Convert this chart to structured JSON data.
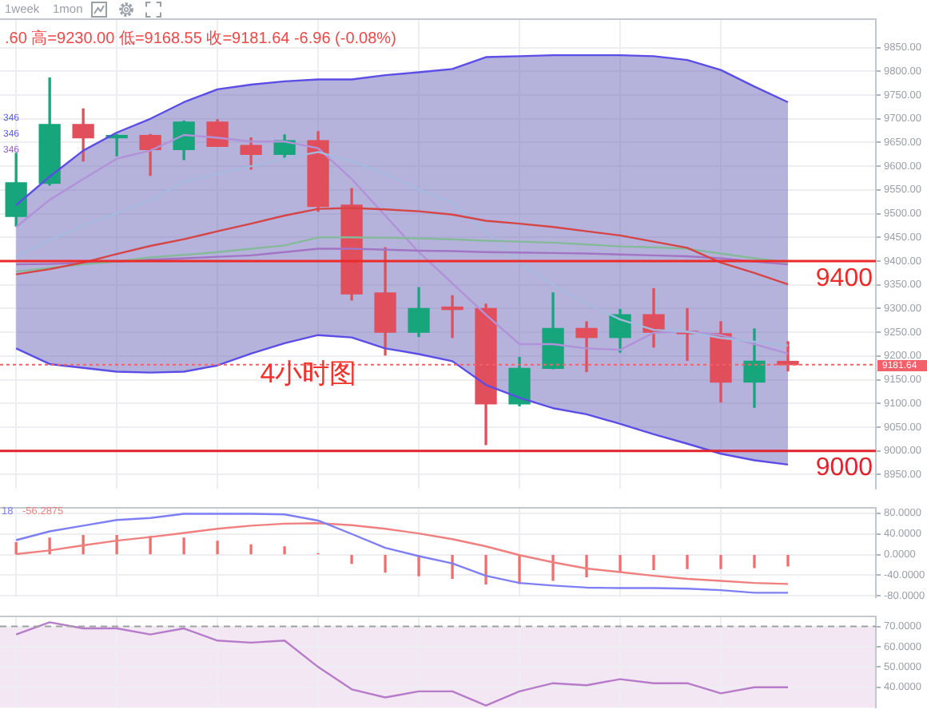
{
  "chart_data": [
    {
      "type": "candlestick",
      "subtitle": ".60 高=9230.00 低=9168.55 收=9181.64 -6.96 (-0.08%)",
      "annotations": [
        "4小时图",
        "346",
        "346",
        "346",
        "1week",
        "1mon"
      ],
      "categories": [
        null,
        null,
        null,
        null,
        null,
        null,
        null,
        null,
        null,
        null,
        null,
        null,
        null,
        null,
        null,
        null,
        null,
        null,
        null,
        null,
        null,
        null,
        null,
        null
      ],
      "ohlc": [
        [
          9494,
          9627,
          9474,
          9565
        ],
        [
          9564,
          9786,
          9560,
          9688
        ],
        [
          9688,
          9721,
          9611,
          9660
        ],
        [
          9660,
          9667,
          9622,
          9665
        ],
        [
          9665,
          9667,
          9581,
          9635
        ],
        [
          9635,
          9695,
          9614,
          9693
        ],
        [
          9693,
          9698,
          9642,
          9642
        ],
        [
          9644,
          9660,
          9594,
          9625
        ],
        [
          9625,
          9666,
          9616,
          9654
        ],
        [
          9654,
          9673,
          9505,
          9515
        ],
        [
          9518,
          9553,
          9318,
          9331
        ],
        [
          9333,
          9428,
          9202,
          9250
        ],
        [
          9250,
          9344,
          9241,
          9300
        ],
        [
          9300,
          9327,
          9239,
          9298
        ],
        [
          9300,
          9309,
          9013,
          9099
        ],
        [
          9099,
          9197,
          9095,
          9174
        ],
        [
          9174,
          9333,
          9173,
          9258
        ],
        [
          9258,
          9272,
          9167,
          9239
        ],
        [
          9239,
          9298,
          9208,
          9287
        ],
        [
          9287,
          9342,
          9219,
          9250
        ],
        [
          9252,
          9300,
          9191,
          9247
        ],
        [
          9247,
          9272,
          9103,
          9145
        ],
        [
          9145,
          9257,
          9092,
          9189
        ],
        [
          9188.6,
          9230,
          9168.55,
          9181.64
        ]
      ],
      "colors": [
        "#17a57c",
        "#17a57c",
        "#e14e5c",
        "#17a57c",
        "#e14e5c",
        "#17a57c",
        "#e14e5c",
        "#e14e5c",
        "#17a57c",
        "#e14e5c",
        "#e14e5c",
        "#e14e5c",
        "#17a57c",
        "#e14e5c",
        "#e14e5c",
        "#17a57c",
        "#17a57c",
        "#e14e5c",
        "#17a57c",
        "#e14e5c",
        "#e14e5c",
        "#e14e5c",
        "#17a57c",
        "#e14e5c"
      ],
      "series": [
        {
          "type": "line",
          "color": "#d64545",
          "values": [
            9372,
            9383,
            9397,
            9415,
            9432,
            9446,
            9463,
            9479,
            9496,
            9510,
            9512,
            9509,
            9505,
            9498,
            9485,
            9479,
            9472,
            9463,
            9454,
            9441,
            9428,
            9397,
            9375,
            9351
          ],
          "upper": [
            9518,
            9578,
            9633,
            9671,
            9700,
            9735,
            9762,
            9772,
            9779,
            9783,
            9783,
            9792,
            9798,
            9805,
            9830,
            9832,
            9834,
            9834,
            9834,
            9832,
            9824,
            9803,
            9768,
            9735
          ],
          "lower": [
            9216,
            9183,
            9175,
            9167,
            9165,
            9167,
            9180,
            9205,
            9227,
            9244,
            9239,
            9216,
            9204,
            9189,
            9139,
            9112,
            9090,
            9077,
            9057,
            9035,
            9015,
            8994,
            8980,
            8971
          ]
        },
        {
          "type": "line",
          "color": "#5b4de6",
          "values": [
            9518,
            9578,
            9633,
            9671,
            9700,
            9735,
            9762,
            9772,
            9779,
            9783,
            9783,
            9792,
            9798,
            9805,
            9830,
            9832,
            9834,
            9834,
            9834,
            9832,
            9824,
            9803,
            9768,
            9735
          ]
        },
        {
          "type": "line",
          "color": "#5b4de6",
          "values": [
            9216,
            9183,
            9175,
            9167,
            9165,
            9167,
            9180,
            9205,
            9227,
            9244,
            9239,
            9216,
            9204,
            9189,
            9139,
            9112,
            9090,
            9077,
            9057,
            9035,
            9015,
            8994,
            8980,
            8971
          ]
        },
        {
          "type": "line",
          "color": "#86b99a",
          "values": [
            9378,
            9386,
            9393,
            9399,
            9408,
            9413,
            9419,
            9426,
            9433,
            9450,
            9450,
            9449,
            9448,
            9446,
            9443,
            9441,
            9439,
            9435,
            9431,
            9429,
            9426,
            9416,
            9406,
            9397
          ]
        },
        {
          "type": "line",
          "color": "#a274c4",
          "values": [
            9393,
            9394,
            9396,
            9399,
            9403,
            9406,
            9409,
            9412,
            9419,
            9426,
            9426,
            9424,
            9422,
            9421,
            9419,
            9418,
            9417,
            9416,
            9414,
            9412,
            9410,
            9406,
            9399,
            9393
          ]
        },
        {
          "type": "line",
          "color": "#a6badf",
          "values": [
            9409,
            9445,
            9475,
            9501,
            9529,
            9567,
            9584,
            9600,
            9616,
            9630,
            9611,
            9584,
            9551,
            9523,
            9463,
            9397,
            9350,
            9310,
            9277,
            9255,
            9251,
            9238,
            9230,
            9222
          ]
        },
        {
          "type": "line",
          "color": "#b192d8",
          "values": [
            9472,
            9529,
            9573,
            9616,
            9633,
            9666,
            9660,
            9652,
            9652,
            9638,
            9573,
            9496,
            9419,
            9353,
            9287,
            9225,
            9225,
            9216,
            9213,
            9249,
            9252,
            9244,
            9225,
            9205
          ]
        }
      ],
      "ylim": [
        8920,
        9910
      ],
      "yticks": [
        {
          "value": 8950,
          "label": "8950.00"
        },
        {
          "value": 9000,
          "label": "9000.00"
        },
        {
          "value": 9050,
          "label": "9050.00"
        },
        {
          "value": 9100,
          "label": "9100.00"
        },
        {
          "value": 9150,
          "label": "9150.00"
        },
        {
          "value": 9200,
          "label": "9200.00"
        },
        {
          "value": 9250,
          "label": "9250.00"
        },
        {
          "value": 9300,
          "label": "9300.00"
        },
        {
          "value": 9350,
          "label": "9350.00"
        },
        {
          "value": 9400,
          "label": "9400.00"
        },
        {
          "value": 9450,
          "label": "9450.00"
        },
        {
          "value": 9500,
          "label": "9500.00"
        },
        {
          "value": 9550,
          "label": "9550.00"
        },
        {
          "value": 9600,
          "label": "9600.00"
        },
        {
          "value": 9650,
          "label": "9650.00"
        },
        {
          "value": 9700,
          "label": "9700.00"
        },
        {
          "value": 9750,
          "label": "9750.00"
        },
        {
          "value": 9800,
          "label": "9800.00"
        },
        {
          "value": 9850,
          "label": "9850.00"
        }
      ],
      "grid": true,
      "ref_lines": [
        {
          "axis": "y",
          "value": 9400,
          "label": "9400",
          "color": "#ec2a2a"
        },
        {
          "axis": "y",
          "value": 9000,
          "label": "9000",
          "color": "#e0242e"
        },
        {
          "axis": "y",
          "value": 9181.64,
          "label": "9181.64",
          "color": "#f2606a",
          "line_style": "dotted"
        }
      ]
    },
    {
      "type": "line",
      "annotations": [
        "18",
        "-56.2875"
      ],
      "categories": [
        null,
        null,
        null,
        null,
        null,
        null,
        null,
        null,
        null,
        null,
        null,
        null,
        null,
        null,
        null,
        null,
        null,
        null,
        null,
        null,
        null,
        null,
        null,
        null
      ],
      "series": [
        {
          "type": "line",
          "color": "#7f7ff5",
          "values": [
            28,
            45,
            56,
            67,
            71,
            79,
            79,
            79,
            78,
            66,
            40,
            13,
            -3,
            -17,
            -41,
            -55,
            -60,
            -64,
            -65,
            -65,
            -66,
            -69,
            -74,
            -74
          ]
        },
        {
          "type": "line",
          "color": "#f07f7f",
          "values": [
            1,
            8,
            18,
            27,
            34,
            42,
            50,
            56,
            60,
            61,
            57,
            50,
            41,
            30,
            16,
            -1,
            -15,
            -27,
            -34,
            -41,
            -47,
            -51,
            -55,
            -57
          ]
        },
        {
          "type": "bar",
          "color": "#f26d6d",
          "values": [
            23,
            32,
            37,
            37,
            35,
            32,
            26,
            19,
            15,
            2,
            -17,
            -34,
            -41,
            -46,
            -57,
            -56,
            -50,
            -43,
            -33,
            -29,
            -27,
            -27,
            -25,
            -22
          ]
        }
      ],
      "ylim": [
        -83,
        91
      ],
      "yticks": [
        {
          "value": -80,
          "label": "-80.0000"
        },
        {
          "value": -40,
          "label": "-40.0000"
        },
        {
          "value": 0,
          "label": "0.0000"
        },
        {
          "value": 40,
          "label": "40.0000"
        },
        {
          "value": 80,
          "label": "80.0000"
        }
      ],
      "grid": true
    },
    {
      "type": "line",
      "categories": [
        null,
        null,
        null,
        null,
        null,
        null,
        null,
        null,
        null,
        null,
        null,
        null,
        null,
        null,
        null,
        null,
        null,
        null,
        null,
        null,
        null,
        null,
        null,
        null
      ],
      "series": [
        {
          "color": "#b77cc9",
          "values": [
            66,
            72,
            69,
            69,
            66,
            69,
            63,
            62,
            63,
            50,
            39,
            35,
            38,
            38,
            31,
            38,
            42,
            41,
            44,
            42,
            42,
            37,
            40,
            40
          ]
        }
      ],
      "ylim": [
        30,
        75
      ],
      "yticks": [
        {
          "value": 40,
          "label": "40.0000"
        },
        {
          "value": 50,
          "label": "50.0000"
        },
        {
          "value": 60,
          "label": "60.0000"
        },
        {
          "value": 70,
          "label": "70.0000"
        }
      ],
      "grid": true,
      "ref_lines": [
        {
          "axis": "y",
          "value": 70,
          "color": "#a0a0a0",
          "line_style": "dashed"
        }
      ],
      "bands": [
        {
          "axis": "y",
          "from": 30,
          "to": 70,
          "color": "#f3e7f4"
        }
      ]
    }
  ]
}
